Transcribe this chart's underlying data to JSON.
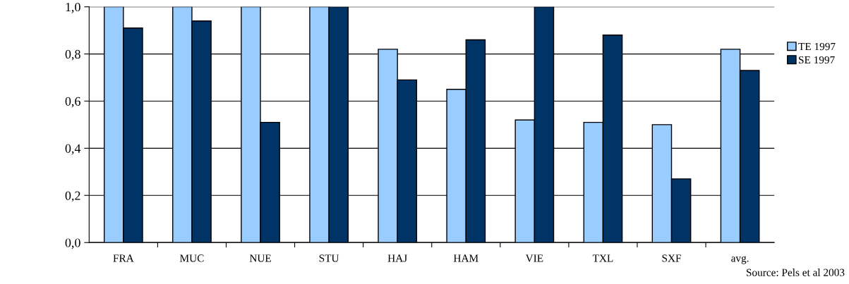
{
  "chart_data": {
    "type": "bar",
    "categories": [
      "FRA",
      "MUC",
      "NUE",
      "STU",
      "HAJ",
      "HAM",
      "VIE",
      "TXL",
      "SXF",
      "avg."
    ],
    "series": [
      {
        "name": "TE 1997",
        "color": "#99ccff",
        "values": [
          1.0,
          1.0,
          1.0,
          1.0,
          0.82,
          0.65,
          0.52,
          0.51,
          0.5,
          0.82
        ]
      },
      {
        "name": "SE 1997",
        "color": "#003366",
        "values": [
          0.91,
          0.94,
          0.51,
          1.0,
          0.69,
          0.86,
          1.0,
          0.88,
          0.27,
          0.73
        ]
      }
    ],
    "ylim": [
      0,
      1.0
    ],
    "yticks": [
      {
        "value": 0,
        "label": "0,0"
      },
      {
        "value": 0.2,
        "label": "0,2"
      },
      {
        "value": 0.4,
        "label": "0,4"
      },
      {
        "value": 0.6,
        "label": "0,6"
      },
      {
        "value": 0.8,
        "label": "0,8"
      },
      {
        "value": 1.0,
        "label": "1,0"
      }
    ],
    "grid": "y",
    "legend": "right",
    "annotations": [
      "Source: Pels et al 2003"
    ]
  }
}
